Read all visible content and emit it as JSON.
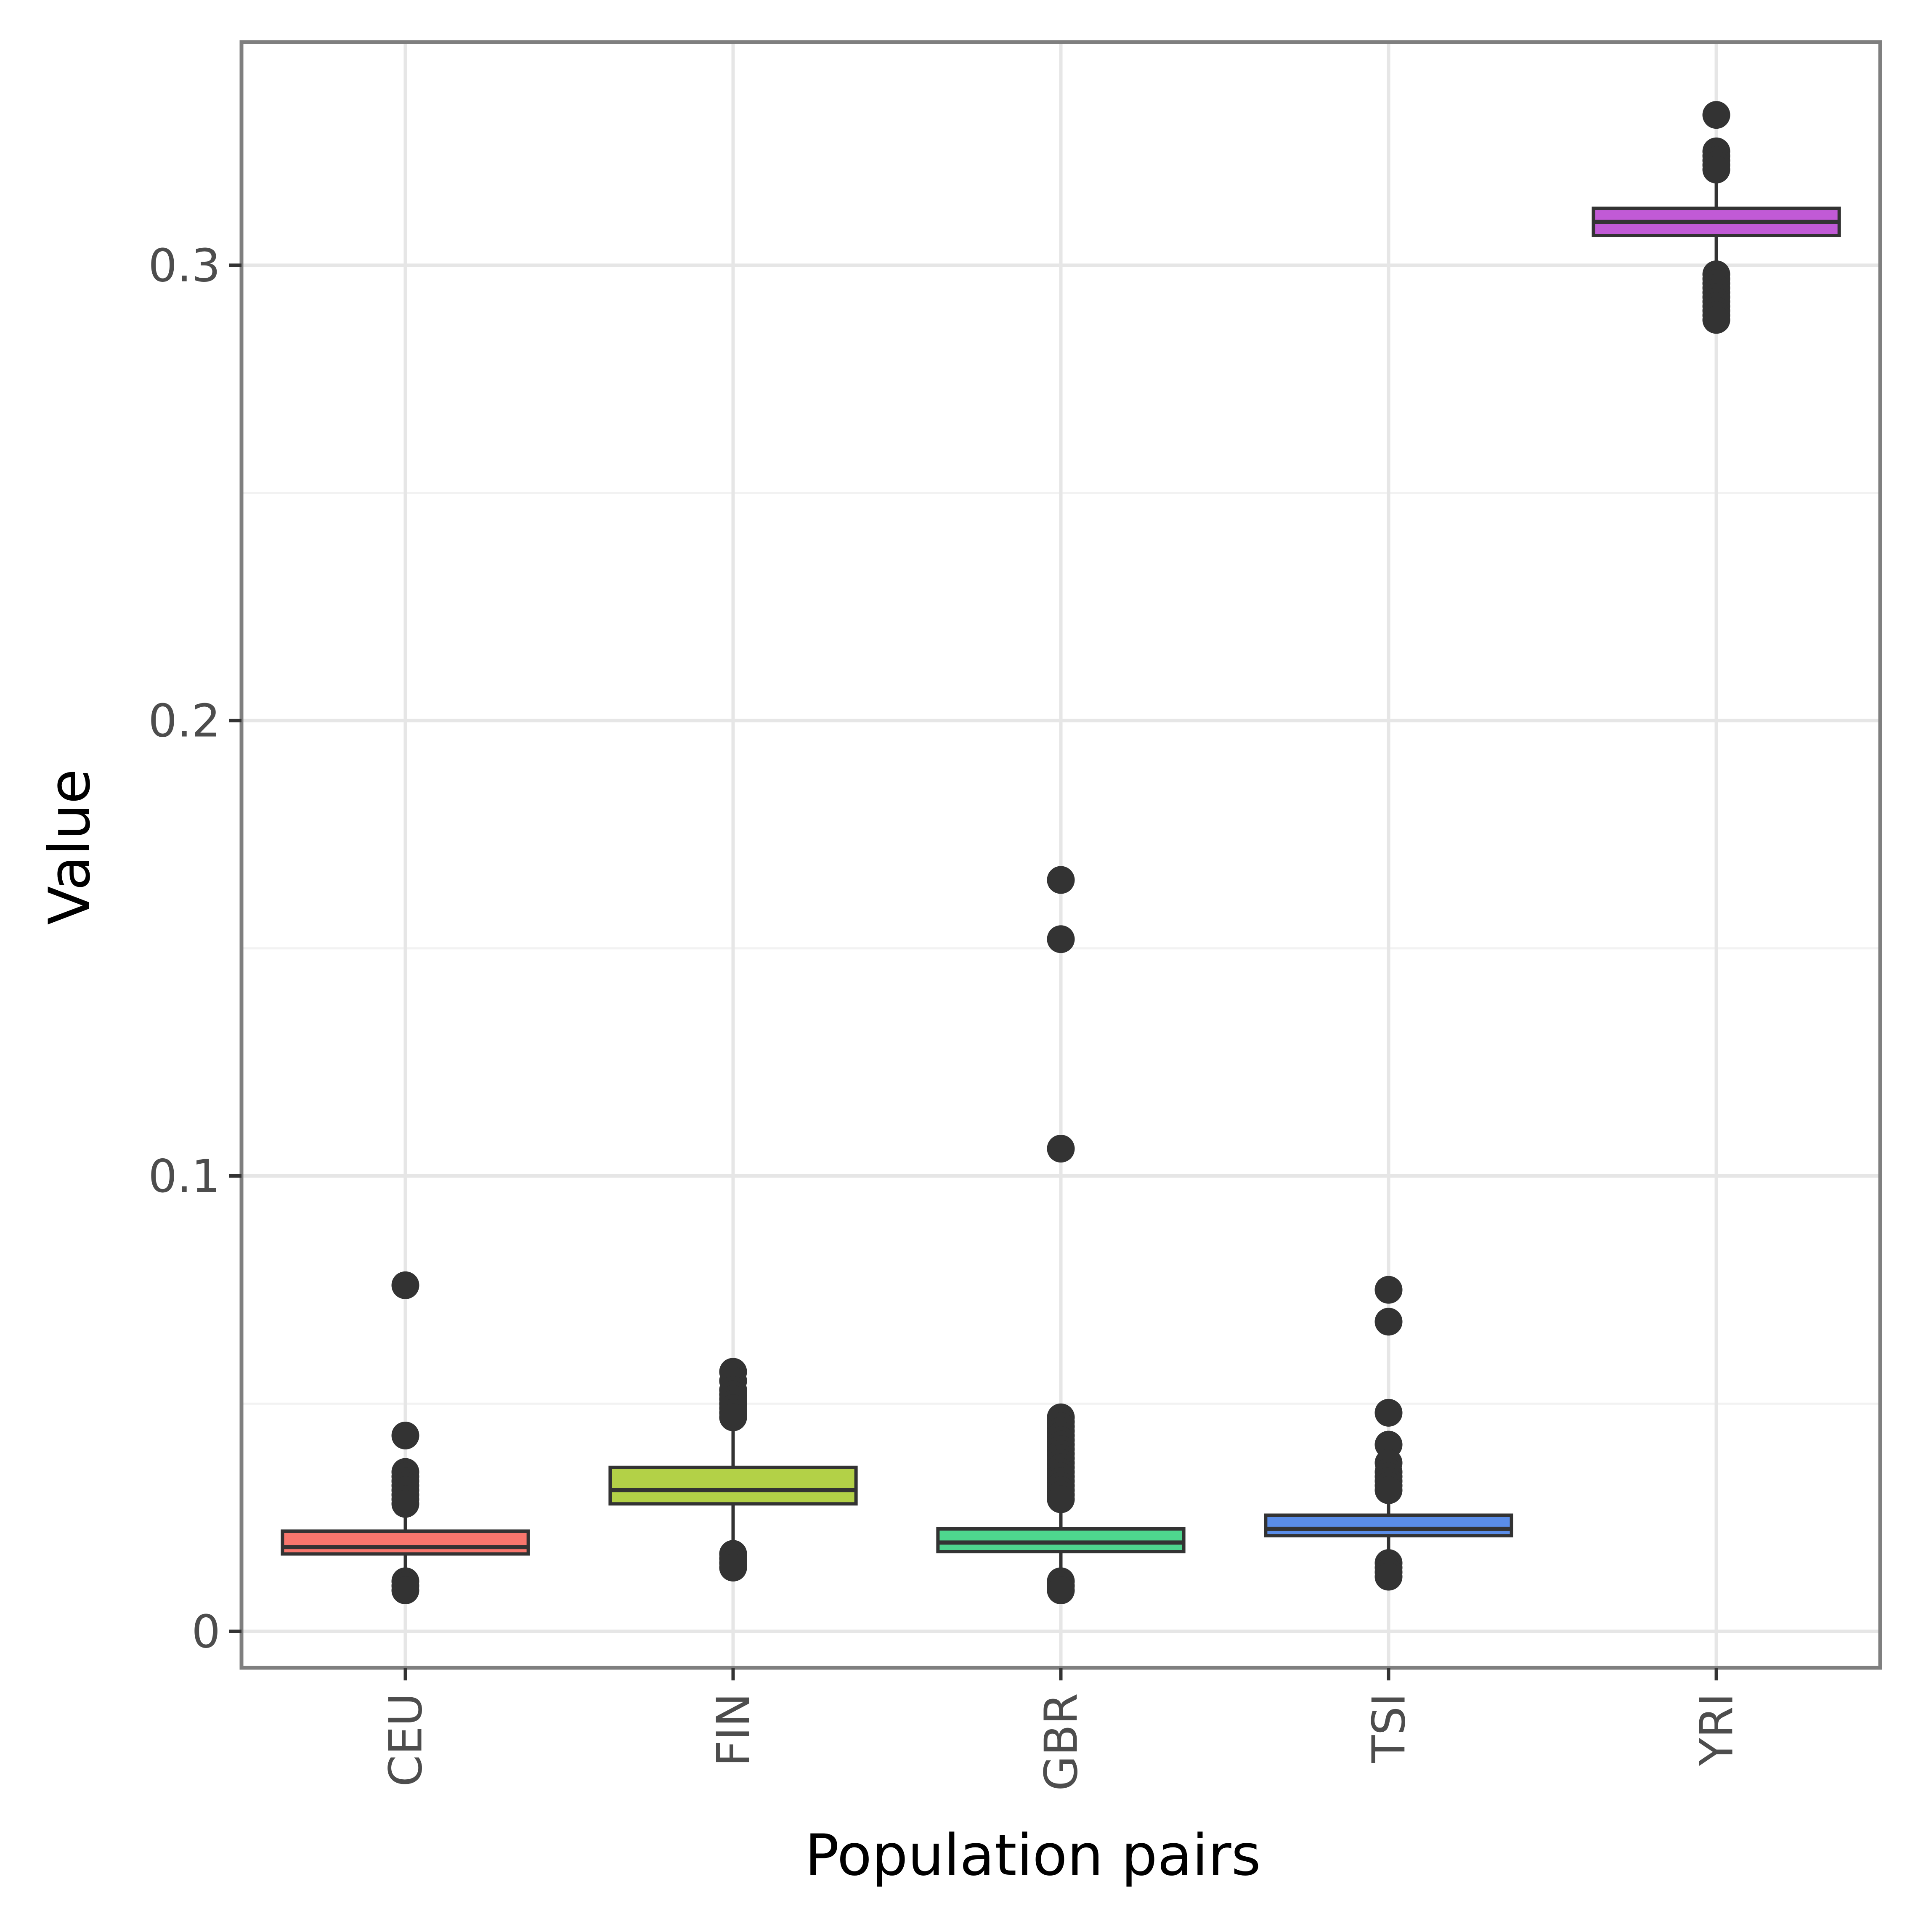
{
  "chart_data": {
    "type": "boxplot",
    "title": "",
    "xlabel": "Population pairs",
    "ylabel": "Value",
    "ylim": [
      -0.008,
      0.349
    ],
    "y_ticks": [
      0,
      0.1,
      0.2,
      0.3
    ],
    "y_tick_labels": [
      "0",
      "0.1",
      "0.2",
      "0.3"
    ],
    "grid": true,
    "legend": "none",
    "categories": [
      "CEU",
      "FIN",
      "GBR",
      "TSI",
      "YRI"
    ],
    "boxes": [
      {
        "category": "CEU",
        "color": "#f8766d",
        "whisker_low": 0.012,
        "q1": 0.017,
        "median": 0.0185,
        "q3": 0.022,
        "whisker_high": 0.026,
        "outliers": [
          0.076,
          0.043,
          0.035,
          0.034,
          0.033,
          0.032,
          0.031,
          0.03,
          0.029,
          0.028,
          0.011,
          0.01,
          0.009
        ]
      },
      {
        "category": "FIN",
        "color": "#b3d147",
        "whisker_low": 0.018,
        "q1": 0.028,
        "median": 0.031,
        "q3": 0.036,
        "whisker_high": 0.045,
        "outliers": [
          0.057,
          0.055,
          0.053,
          0.052,
          0.051,
          0.05,
          0.049,
          0.048,
          0.047,
          0.017,
          0.016,
          0.015,
          0.014
        ]
      },
      {
        "category": "GBR",
        "color": "#4ed68e",
        "whisker_low": 0.012,
        "q1": 0.0175,
        "median": 0.0195,
        "q3": 0.0225,
        "whisker_high": 0.028,
        "outliers": [
          0.165,
          0.152,
          0.106,
          0.047,
          0.046,
          0.045,
          0.044,
          0.043,
          0.042,
          0.041,
          0.04,
          0.039,
          0.038,
          0.037,
          0.036,
          0.035,
          0.034,
          0.033,
          0.032,
          0.031,
          0.03,
          0.029,
          0.011,
          0.01,
          0.009
        ]
      },
      {
        "category": "TSI",
        "color": "#5a8de8",
        "whisker_low": 0.016,
        "q1": 0.021,
        "median": 0.0225,
        "q3": 0.0255,
        "whisker_high": 0.029,
        "outliers": [
          0.075,
          0.068,
          0.048,
          0.041,
          0.037,
          0.035,
          0.034,
          0.033,
          0.032,
          0.031,
          0.015,
          0.014,
          0.013,
          0.012
        ]
      },
      {
        "category": "YRI",
        "color": "#c15ad6",
        "whisker_low": 0.299,
        "q1": 0.3065,
        "median": 0.3095,
        "q3": 0.3125,
        "whisker_high": 0.319,
        "outliers": [
          0.333,
          0.325,
          0.324,
          0.323,
          0.322,
          0.321,
          0.298,
          0.297,
          0.296,
          0.295,
          0.294,
          0.293,
          0.292,
          0.291,
          0.29,
          0.289,
          0.288
        ]
      }
    ]
  }
}
